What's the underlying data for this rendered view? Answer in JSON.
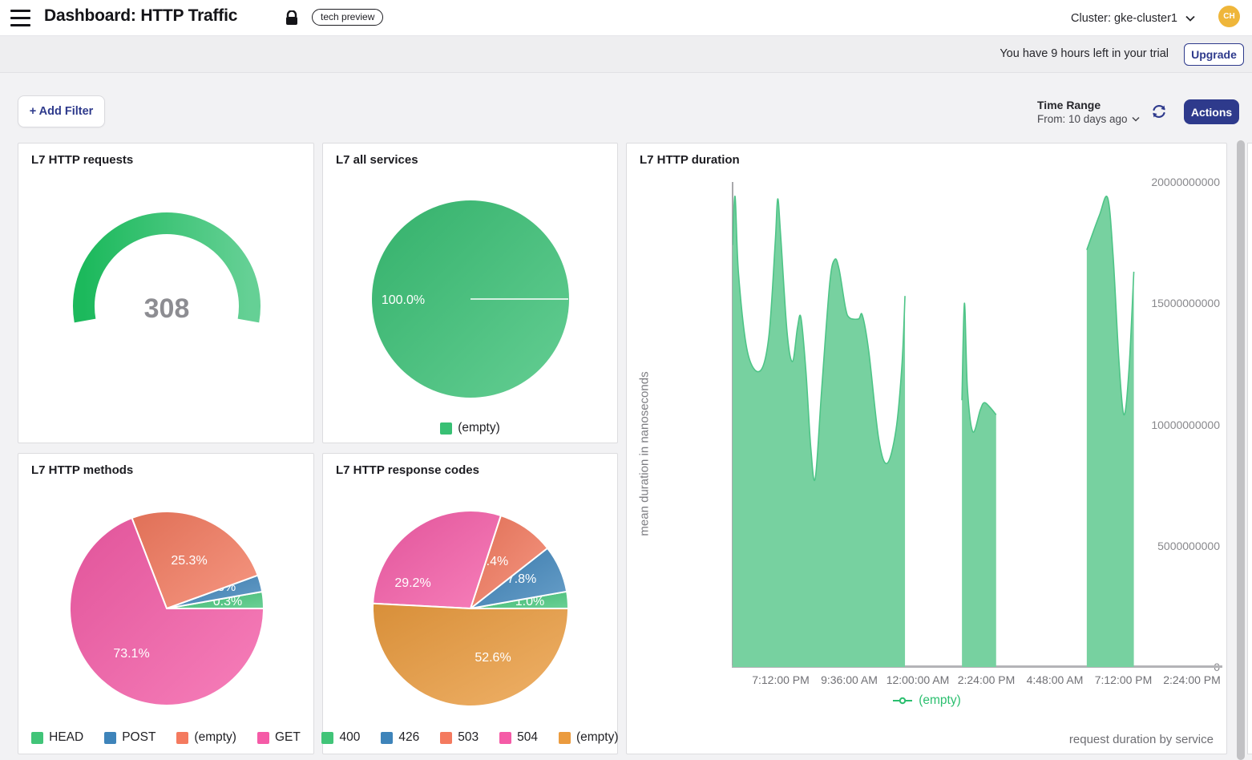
{
  "header": {
    "title": "Dashboard: HTTP Traffic",
    "badge": "tech preview",
    "cluster_label": "Cluster: gke-cluster1",
    "avatar_initials": "CH"
  },
  "trial_bar": {
    "message": "You have 9 hours left in your trial",
    "upgrade_label": "Upgrade"
  },
  "toolbar": {
    "add_filter_label": "+ Add Filter",
    "time_range_title": "Time Range",
    "time_range_value": "From: 10 days ago",
    "actions_label": "Actions"
  },
  "colors": {
    "navy": "#2e3a8c",
    "green": "#41c478",
    "blue": "#3e84ba",
    "salmon": "#f47a5f",
    "pink": "#f55ba7",
    "orange": "#eb9b3e",
    "area_fill": "#77d1a0",
    "area_line": "#4ec487",
    "legend_green_text": "#2bbf6f",
    "gauge_start": "#1cb95c",
    "gauge_end": "#65d095",
    "gauge_value_text": "#8d8d92",
    "avatar_bg": "#efb63a"
  },
  "chart_data": [
    {
      "id": "requests",
      "type": "gauge",
      "title": "L7 HTTP requests",
      "value": "308"
    },
    {
      "id": "services",
      "type": "pie",
      "title": "L7 all services",
      "slices": [
        {
          "label": "(empty)",
          "value": 100.0,
          "display": "100.0%",
          "color": "#38c074"
        }
      ],
      "legend_position": "bottom"
    },
    {
      "id": "duration",
      "type": "area",
      "title": "L7 HTTP duration",
      "ylabel": "mean duration in nanoseconds",
      "ylim": [
        0,
        20000000000
      ],
      "yticks": [
        "20000000000",
        "15000000000",
        "10000000000",
        "5000000000",
        "0"
      ],
      "xticks": [
        "7:12:00 PM",
        "9:36:00 AM",
        "12:00:00 AM",
        "2:24:00 PM",
        "4:48:00 AM",
        "7:12:00 PM",
        "2:24:00 PM"
      ],
      "legend": "(empty)",
      "footer": "request duration by service",
      "series": [
        {
          "name": "(empty)",
          "fill_color": "#77d1a0",
          "line_color": "#4ec487",
          "segments": [
            [
              [
                0.0,
                17400000000
              ],
              [
                0.005,
                19400000000
              ],
              [
                0.012,
                16200000000
              ],
              [
                0.03,
                13000000000
              ],
              [
                0.055,
                12200000000
              ],
              [
                0.073,
                13600000000
              ],
              [
                0.086,
                17500000000
              ],
              [
                0.091,
                19300000000
              ],
              [
                0.097,
                17800000000
              ],
              [
                0.11,
                13800000000
              ],
              [
                0.121,
                12600000000
              ],
              [
                0.131,
                14000000000
              ],
              [
                0.138,
                14400000000
              ],
              [
                0.148,
                12200000000
              ],
              [
                0.158,
                9000000000
              ],
              [
                0.167,
                7800000000
              ],
              [
                0.18,
                11500000000
              ],
              [
                0.196,
                15800000000
              ],
              [
                0.206,
                16800000000
              ],
              [
                0.215,
                16400000000
              ],
              [
                0.228,
                14800000000
              ],
              [
                0.236,
                14400000000
              ],
              [
                0.254,
                14350000000
              ],
              [
                0.262,
                14500000000
              ],
              [
                0.275,
                13000000000
              ],
              [
                0.295,
                9400000000
              ],
              [
                0.312,
                8400000000
              ],
              [
                0.33,
                9800000000
              ],
              [
                0.342,
                12500000000
              ],
              [
                0.348,
                15300000000
              ]
            ],
            [
              [
                0.463,
                11000000000
              ],
              [
                0.468,
                15000000000
              ],
              [
                0.474,
                11500000000
              ],
              [
                0.485,
                9700000000
              ],
              [
                0.5,
                10600000000
              ],
              [
                0.508,
                10900000000
              ],
              [
                0.52,
                10700000000
              ],
              [
                0.532,
                10400000000
              ]
            ],
            [
              [
                0.715,
                17200000000
              ],
              [
                0.74,
                18600000000
              ],
              [
                0.757,
                19350000000
              ],
              [
                0.768,
                17000000000
              ],
              [
                0.78,
                12600000000
              ],
              [
                0.79,
                10400000000
              ],
              [
                0.8,
                12200000000
              ],
              [
                0.81,
                16300000000
              ]
            ]
          ]
        }
      ]
    },
    {
      "id": "methods",
      "type": "pie",
      "title": "L7 HTTP methods",
      "slices": [
        {
          "label": "HEAD",
          "value": 0.3,
          "display": "0.3%",
          "color": "#41c478"
        },
        {
          "label": "POST",
          "value": 1.3,
          "display": "1.3%",
          "color": "#3e84ba"
        },
        {
          "label": "(empty)",
          "value": 25.3,
          "display": "25.3%",
          "color": "#f47a5f"
        },
        {
          "label": "GET",
          "value": 73.1,
          "display": "73.1%",
          "color": "#f55ba7"
        }
      ],
      "legend_position": "bottom"
    },
    {
      "id": "codes",
      "type": "pie",
      "title": "L7 HTTP response codes",
      "slices": [
        {
          "label": "400",
          "value": 1.0,
          "display": "1.0%",
          "color": "#41c478"
        },
        {
          "label": "426",
          "value": 7.8,
          "display": "7.8%",
          "color": "#3e84ba"
        },
        {
          "label": "503",
          "value": 9.4,
          "display": "9.4%",
          "color": "#f47a5f"
        },
        {
          "label": "504",
          "value": 29.2,
          "display": "29.2%",
          "color": "#f55ba7"
        },
        {
          "label": "(empty)",
          "value": 52.6,
          "display": "52.6%",
          "color": "#eb9b3e"
        }
      ],
      "legend_position": "bottom"
    }
  ]
}
